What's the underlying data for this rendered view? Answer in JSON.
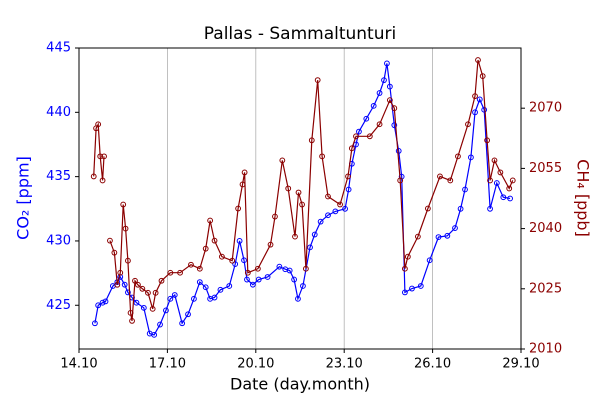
{
  "chart_data": {
    "type": "line",
    "title": "Pallas - Sammaltunturi",
    "x_label": "Date (day.month)",
    "y_label": "CO₂ [ppm]",
    "y2_label": "CH₄ [ppb]",
    "xlim": [
      14,
      29
    ],
    "xticks": [
      {
        "value": 14,
        "label": "14.10"
      },
      {
        "value": 17,
        "label": "17.10"
      },
      {
        "value": 20,
        "label": "20.10"
      },
      {
        "value": 23,
        "label": "23.10"
      },
      {
        "value": 26,
        "label": "26.10"
      },
      {
        "value": 29,
        "label": "29.10"
      }
    ],
    "ylim": [
      421.6,
      445
    ],
    "yticks": [
      425,
      430,
      435,
      440,
      445
    ],
    "y2lim": [
      2010,
      2085
    ],
    "y2ticks": [
      2010,
      2025,
      2040,
      2055,
      2070
    ],
    "grid": "x",
    "y_color": "#0000ff",
    "y2_color": "#8b0000",
    "series": [
      {
        "color": "#0000ff",
        "axis": "y",
        "x": [
          14.54,
          14.65,
          14.8,
          14.9,
          15.15,
          15.3,
          15.4,
          15.55,
          15.66,
          15.8,
          15.95,
          16.2,
          16.4,
          16.55,
          16.75,
          16.95,
          17.1,
          17.25,
          17.5,
          17.7,
          17.9,
          18.1,
          18.3,
          18.45,
          18.6,
          18.8,
          19.1,
          19.3,
          19.45,
          19.6,
          19.7,
          19.9,
          20.1,
          20.4,
          20.8,
          21.0,
          21.15,
          21.3,
          21.43,
          21.6,
          21.84,
          22.0,
          22.2,
          22.45,
          22.7,
          23.03,
          23.15,
          23.26,
          23.4,
          23.5,
          23.75,
          24.0,
          24.2,
          24.35,
          24.45,
          24.55,
          24.7,
          24.85,
          24.95,
          25.06,
          25.3,
          25.6,
          25.9,
          26.2,
          26.5,
          26.76,
          26.95,
          27.1,
          27.3,
          27.44,
          27.6,
          27.75,
          27.95,
          28.18,
          28.4,
          28.63
        ],
        "values": [
          423.6,
          425,
          425.2,
          425.3,
          426.5,
          426.8,
          427.2,
          426.6,
          426,
          425.6,
          425.2,
          424.8,
          422.8,
          422.7,
          423.5,
          424.6,
          425.5,
          425.8,
          423.6,
          424.3,
          425.5,
          426.8,
          426.4,
          425.5,
          425.6,
          426.2,
          426.5,
          428.2,
          430,
          428.5,
          427,
          426.6,
          427,
          427.2,
          428,
          427.8,
          427.7,
          427,
          425.5,
          426.5,
          429.5,
          430.5,
          431.5,
          432,
          432.3,
          432.5,
          434,
          436,
          437.5,
          438.5,
          439.5,
          440.5,
          441.5,
          442.5,
          443.8,
          442,
          439,
          437,
          435,
          426,
          426.3,
          426.5,
          428.5,
          430.3,
          430.4,
          431,
          432.5,
          434,
          436.5,
          440,
          441,
          440.2,
          432.5,
          434.5,
          433.4,
          433.3
        ]
      },
      {
        "color": "#8b0000",
        "axis": "y2",
        "x": [
          14.5,
          14.58,
          14.65,
          14.72,
          14.8,
          14.85,
          14.95,
          15.05,
          15.2,
          15.3,
          15.4,
          15.5,
          15.58,
          15.66,
          15.75,
          15.8,
          15.9,
          16.0,
          16.15,
          16.34,
          16.5,
          16.6,
          16.8,
          17.1,
          17.43,
          17.8,
          18.1,
          18.3,
          18.45,
          18.6,
          18.85,
          19.2,
          19.4,
          19.55,
          19.62,
          19.73,
          20.07,
          20.5,
          20.65,
          20.9,
          21.1,
          21.33,
          21.45,
          21.57,
          21.7,
          21.9,
          22.1,
          22.25,
          22.45,
          22.86,
          23.13,
          23.26,
          23.4,
          23.87,
          24.2,
          24.55,
          24.7,
          24.9,
          25.06,
          25.16,
          25.5,
          25.84,
          26.25,
          26.6,
          26.86,
          27.2,
          27.44,
          27.54,
          27.7,
          27.85,
          27.95,
          28.1,
          28.3,
          28.6,
          28.72
        ],
        "values": [
          2053,
          2065,
          2066,
          2058,
          2052,
          2058,
          null,
          2037,
          2034,
          2026,
          2029,
          2046,
          2040,
          2032,
          2019,
          2017,
          2027,
          2026,
          2025,
          2024,
          2020,
          2024,
          2027,
          2029,
          2029,
          2031,
          2030,
          2035,
          2042,
          2037,
          2033,
          2032,
          2045,
          2051,
          2054,
          2029,
          2030,
          2036,
          2043,
          2057,
          2050,
          2038,
          2049,
          2046,
          2030,
          2062,
          2077,
          2058,
          2048,
          2046,
          2053,
          2060,
          2063,
          2063,
          2066,
          2072,
          2070,
          2052,
          2030,
          2033,
          2038,
          2045,
          2053,
          2052,
          2058,
          2066,
          2073,
          2082,
          2078,
          2062,
          2052,
          2057,
          2054,
          2050,
          2052
        ]
      }
    ]
  }
}
